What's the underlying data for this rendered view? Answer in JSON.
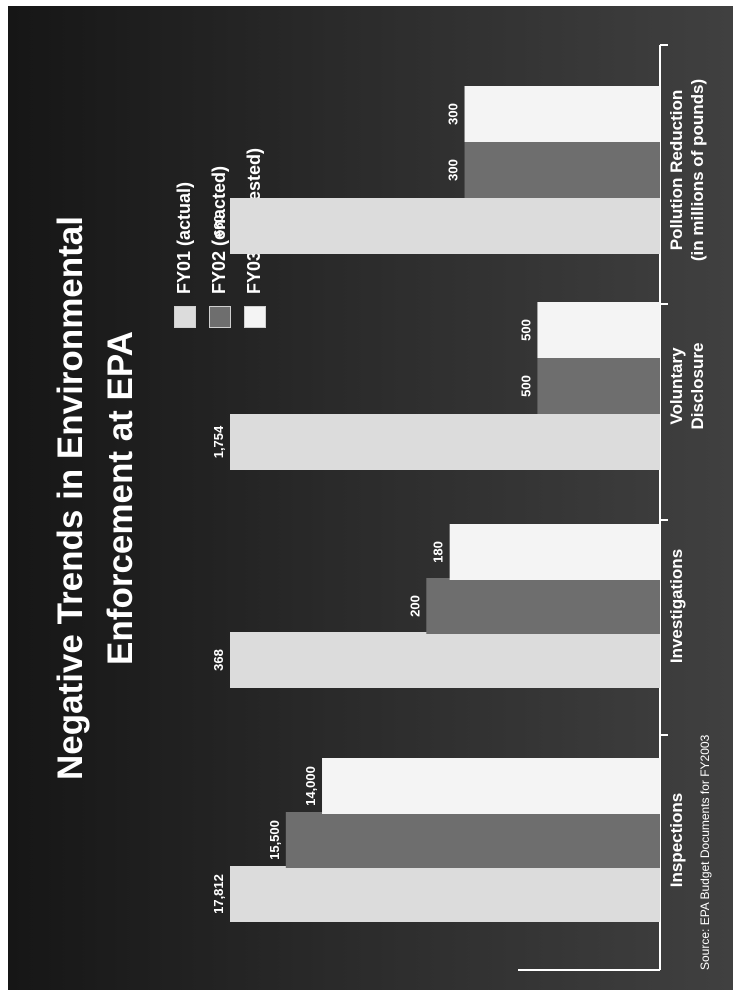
{
  "title_line1": "Negative Trends in Environmental",
  "title_line2": "Enforcement at EPA",
  "legend": [
    {
      "label": "FY01 (actual)",
      "color": "#dcdcdc"
    },
    {
      "label": "FY02 (enacted)",
      "color": "#6e6e6e"
    },
    {
      "label": "FY03 (requested)",
      "color": "#f4f4f4"
    }
  ],
  "source": "Source: EPA Budget Documents for FY2003",
  "chart_data": {
    "type": "bar",
    "title": "Negative Trends in Environmental Enforcement at EPA",
    "categories": [
      [
        "Inspections"
      ],
      [
        "Investigations"
      ],
      [
        "Voluntary",
        "Disclosure"
      ],
      [
        "Pollution Reduction",
        "(in millions of pounds)"
      ]
    ],
    "series": [
      {
        "name": "FY01 (actual)",
        "color": "#dcdcdc",
        "values": [
          17812,
          368,
          1754,
          660
        ],
        "labels": [
          "17,812",
          "368",
          "1,754",
          "660"
        ]
      },
      {
        "name": "FY02 (enacted)",
        "color": "#6e6e6e",
        "values": [
          15500,
          200,
          500,
          300
        ],
        "labels": [
          "15,500",
          "200",
          "500",
          "300"
        ]
      },
      {
        "name": "FY03 (requested)",
        "color": "#f4f4f4",
        "values": [
          14000,
          180,
          500,
          300
        ],
        "labels": [
          "14,000",
          "180",
          "500",
          "300"
        ]
      }
    ],
    "scale": "independent per category",
    "grid": false,
    "legend_position": "top-right"
  }
}
